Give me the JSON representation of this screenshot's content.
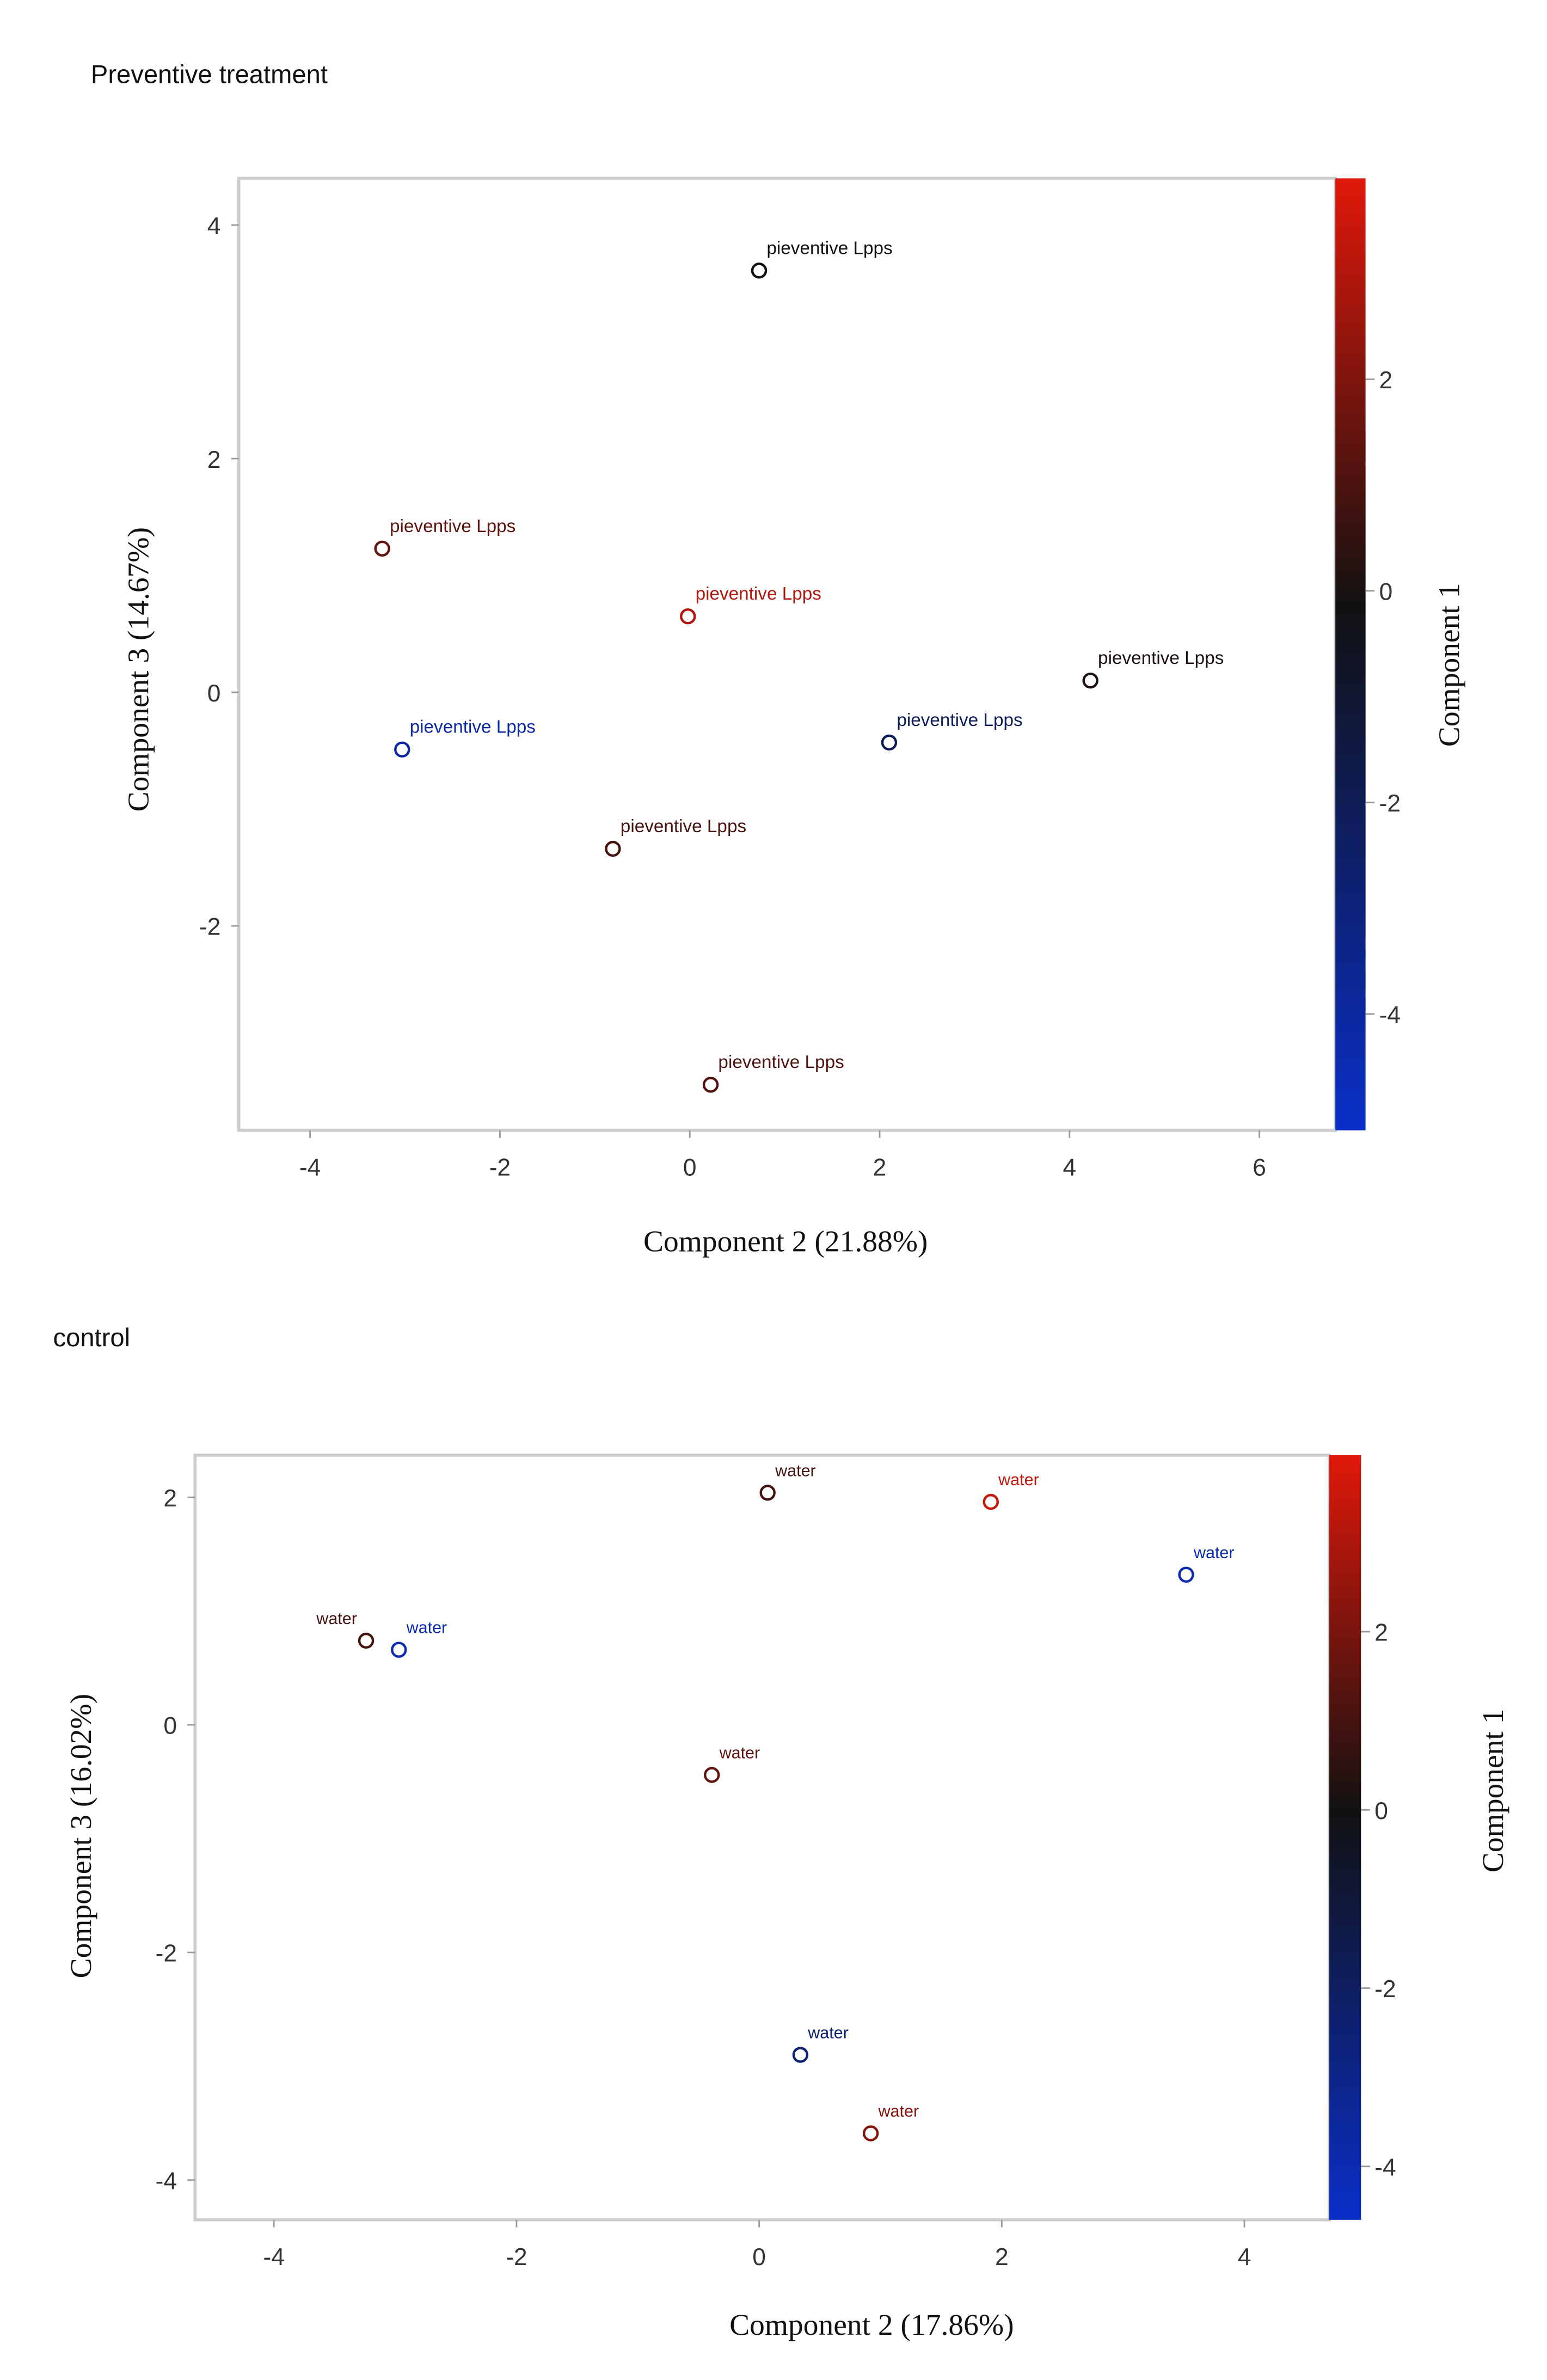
{
  "chart_data": [
    {
      "type": "scatter",
      "title": "Preventive treatment",
      "xlabel": "Component 2 (21.88%)",
      "ylabel": "Component 3 (14.67%)",
      "colorbar_label": "Component 1",
      "xlim": [
        -4.75,
        6.8
      ],
      "ylim": [
        -3.75,
        4.4
      ],
      "xticks": [
        -4,
        -2,
        0,
        2,
        4,
        6
      ],
      "yticks": [
        -2,
        0,
        2,
        4
      ],
      "color_range": [
        -5.1,
        3.9
      ],
      "color_ticks": [
        -4,
        -2,
        0,
        2
      ],
      "colormap": {
        "low": "#0a2fc8",
        "mid": "#111111",
        "high": "#e0180a"
      },
      "grid": false,
      "points": [
        {
          "x": 0.73,
          "y": 3.61,
          "c": 0.0,
          "label": "pieventive Lpps"
        },
        {
          "x": -3.24,
          "y": 1.23,
          "c": 1.5,
          "label": "pieventive Lpps"
        },
        {
          "x": -0.02,
          "y": 0.65,
          "c": 3.0,
          "label": "pieventive Lpps"
        },
        {
          "x": 4.22,
          "y": 0.1,
          "c": 0.2,
          "label": "pieventive Lpps"
        },
        {
          "x": -3.03,
          "y": -0.49,
          "c": -4.0,
          "label": "pieventive Lpps"
        },
        {
          "x": 2.1,
          "y": -0.43,
          "c": -2.0,
          "label": "pieventive Lpps"
        },
        {
          "x": -0.81,
          "y": -1.34,
          "c": 1.0,
          "label": "pieventive Lpps"
        },
        {
          "x": 0.22,
          "y": -3.36,
          "c": 1.2,
          "label": "pieventive Lpps"
        }
      ]
    },
    {
      "type": "scatter",
      "title": "control",
      "xlabel": "Component 2 (17.86%)",
      "ylabel": "Component 3 (16.02%)",
      "colorbar_label": "Component 1",
      "xlim": [
        -4.65,
        4.7
      ],
      "ylim": [
        -4.35,
        2.37
      ],
      "xticks": [
        -4,
        -2,
        0,
        2,
        4
      ],
      "yticks": [
        -4,
        -2,
        0,
        2
      ],
      "color_range": [
        -4.6,
        3.98
      ],
      "color_ticks": [
        -4,
        -2,
        0,
        2
      ],
      "colormap": {
        "low": "#0a2fc8",
        "mid": "#111111",
        "high": "#e0180a"
      },
      "grid": false,
      "points": [
        {
          "x": 0.07,
          "y": 2.04,
          "c": 1.0,
          "label": "water"
        },
        {
          "x": 1.91,
          "y": 1.96,
          "c": 3.5,
          "label": "water"
        },
        {
          "x": 3.52,
          "y": 1.32,
          "c": -4.0,
          "label": "water"
        },
        {
          "x": -3.24,
          "y": 0.74,
          "c": 1.0,
          "label": "water",
          "label_side": "left"
        },
        {
          "x": -2.97,
          "y": 0.66,
          "c": -4.0,
          "label": "water"
        },
        {
          "x": -0.39,
          "y": -0.44,
          "c": 1.5,
          "label": "water"
        },
        {
          "x": 0.34,
          "y": -2.9,
          "c": -2.5,
          "label": "water"
        },
        {
          "x": 0.92,
          "y": -3.59,
          "c": 2.2,
          "label": "water"
        }
      ]
    }
  ]
}
